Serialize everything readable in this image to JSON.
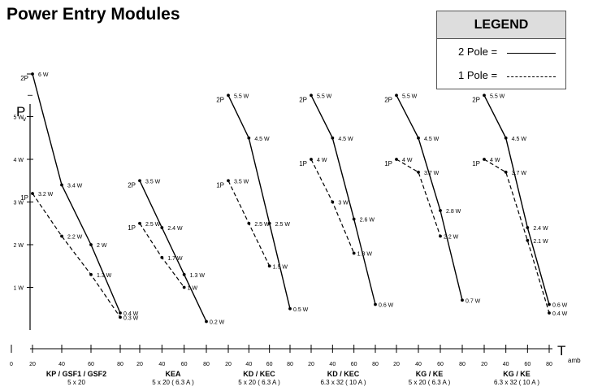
{
  "title": "Power Entry Modules",
  "legend": {
    "heading": "LEGEND",
    "items": [
      {
        "label": "2 Pole =",
        "style": "solid"
      },
      {
        "label": "1 Pole =",
        "style": "dashed"
      }
    ]
  },
  "y_axis": {
    "label": "P",
    "sub": "v",
    "ticks": [
      "5 W",
      "4 W",
      "3 W",
      "2 W",
      "1 W"
    ],
    "values": [
      5,
      4,
      3,
      2,
      1
    ]
  },
  "x_axis": {
    "label": "T",
    "sub": "amb"
  },
  "chart_data": [
    {
      "type": "line",
      "name": "KP / GSF1 / GSF2",
      "subtitle": "5 x 20",
      "x_ticks": [
        "0",
        "20",
        "40",
        "60",
        "80"
      ],
      "xlim": [
        0,
        80
      ],
      "series": [
        {
          "name": "2P",
          "style": "solid",
          "x": [
            20,
            40,
            60,
            80
          ],
          "y": [
            6.0,
            3.4,
            2.0,
            0.4
          ],
          "labels": [
            "6 W",
            "3.4 W",
            "2 W",
            "0.4 W"
          ]
        },
        {
          "name": "1P",
          "style": "dashed",
          "x": [
            20,
            40,
            60,
            80
          ],
          "y": [
            3.2,
            2.2,
            1.3,
            0.3
          ],
          "labels": [
            "3.2 W",
            "2.2 W",
            "1.3 W",
            "0.3 W"
          ]
        }
      ]
    },
    {
      "type": "line",
      "name": "KEA",
      "subtitle": "5 x 20 ( 6.3 A )",
      "x_ticks": [
        "20",
        "40",
        "60",
        "80"
      ],
      "xlim": [
        20,
        80
      ],
      "series": [
        {
          "name": "2P",
          "style": "solid",
          "x": [
            20,
            40,
            60,
            80
          ],
          "y": [
            3.5,
            2.4,
            1.3,
            0.2
          ],
          "labels": [
            "3.5 W",
            "2.4 W",
            "1.3 W",
            "0.2 W"
          ]
        },
        {
          "name": "1P",
          "style": "dashed",
          "x": [
            20,
            40,
            60
          ],
          "y": [
            2.5,
            1.7,
            1.0
          ],
          "labels": [
            "2.5 W",
            "1.7 W",
            "1 W"
          ]
        }
      ]
    },
    {
      "type": "line",
      "name": "KD / KEC",
      "subtitle": "5 x 20 ( 6.3 A )",
      "x_ticks": [
        "20",
        "40",
        "60",
        "80"
      ],
      "xlim": [
        20,
        80
      ],
      "series": [
        {
          "name": "2P",
          "style": "solid",
          "x": [
            20,
            40,
            60,
            80
          ],
          "y": [
            5.5,
            4.5,
            2.5,
            0.5
          ],
          "labels": [
            "5.5 W",
            "4.5 W",
            "2.5 W",
            "0.5 W"
          ]
        },
        {
          "name": "1P",
          "style": "dashed",
          "x": [
            20,
            40,
            60
          ],
          "y": [
            3.5,
            2.5,
            1.5
          ],
          "labels": [
            "3.5 W",
            "2.5 W",
            "1.5 W"
          ]
        }
      ]
    },
    {
      "type": "line",
      "name": "KD / KEC",
      "subtitle": "6.3 x 32 ( 10 A )",
      "x_ticks": [
        "20",
        "40",
        "60",
        "80"
      ],
      "xlim": [
        20,
        80
      ],
      "series": [
        {
          "name": "2P",
          "style": "solid",
          "x": [
            20,
            40,
            60,
            80
          ],
          "y": [
            5.5,
            4.5,
            2.6,
            0.6
          ],
          "labels": [
            "5.5 W",
            "4.5 W",
            "2.6 W",
            "0.6 W"
          ]
        },
        {
          "name": "1P",
          "style": "dashed",
          "x": [
            20,
            40,
            60
          ],
          "y": [
            4.0,
            3.0,
            1.8
          ],
          "labels": [
            "4 W",
            "3 W",
            "1.8 W"
          ]
        }
      ]
    },
    {
      "type": "line",
      "name": "KG / KE",
      "subtitle": "5 x 20 ( 6.3 A )",
      "x_ticks": [
        "20",
        "40",
        "60",
        "80"
      ],
      "xlim": [
        20,
        80
      ],
      "series": [
        {
          "name": "2P",
          "style": "solid",
          "x": [
            20,
            40,
            60,
            80
          ],
          "y": [
            5.5,
            4.5,
            2.8,
            0.7
          ],
          "labels": [
            "5.5 W",
            "4.5 W",
            "2.8 W",
            "0.7 W"
          ]
        },
        {
          "name": "1P",
          "style": "dashed",
          "x": [
            20,
            40,
            60
          ],
          "y": [
            4.0,
            3.7,
            2.2
          ],
          "labels": [
            "4 W",
            "3.7 W",
            "2.2 W"
          ]
        }
      ]
    },
    {
      "type": "line",
      "name": "KG / KE",
      "subtitle": "6.3 x 32 ( 10 A )",
      "x_ticks": [
        "20",
        "40",
        "60",
        "80"
      ],
      "xlim": [
        20,
        80
      ],
      "series": [
        {
          "name": "2P",
          "style": "solid",
          "x": [
            20,
            40,
            60,
            80
          ],
          "y": [
            5.5,
            4.5,
            2.4,
            0.6
          ],
          "labels": [
            "5.5 W",
            "4.5 W",
            "2.4 W",
            "0.6 W"
          ]
        },
        {
          "name": "1P",
          "style": "dashed",
          "x": [
            20,
            40,
            60,
            80
          ],
          "y": [
            4.0,
            3.7,
            2.1,
            0.4
          ],
          "labels": [
            "4 W",
            "3.7 W",
            "2.1 W",
            "0.4 W"
          ]
        }
      ]
    }
  ]
}
